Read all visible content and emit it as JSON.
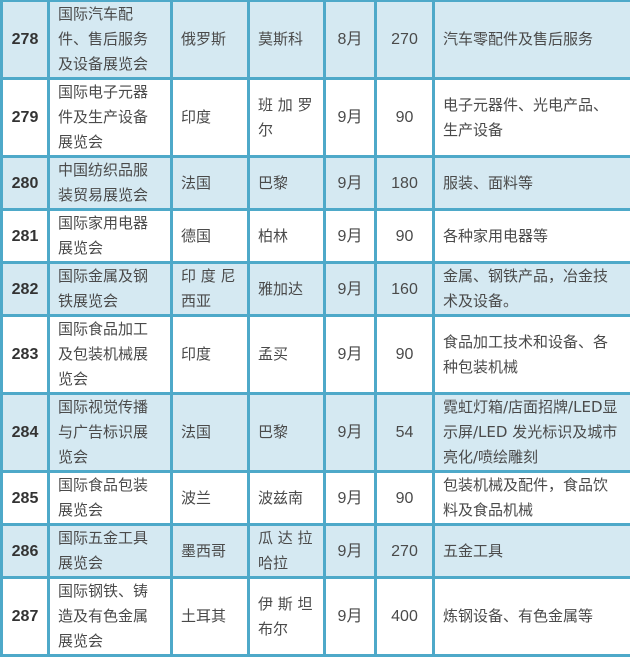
{
  "rows": [
    {
      "no": "278",
      "name": "国际汽车配件、售后服务及设备展览会",
      "country": "俄罗斯",
      "city": "莫斯科",
      "month": "8月",
      "count": "270",
      "products": "汽车零配件及售后服务"
    },
    {
      "no": "279",
      "name": "国际电子元器件及生产设备展览会",
      "country": "印度",
      "city": "班 加 罗 尔",
      "month": "9月",
      "count": "90",
      "products": "电子元器件、光电产品、生产设备"
    },
    {
      "no": "280",
      "name": "中国纺织品服装贸易展览会",
      "country": "法国",
      "city": "巴黎",
      "month": "9月",
      "count": "180",
      "products": "服装、面料等"
    },
    {
      "no": "281",
      "name": "国际家用电器展览会",
      "country": "德国",
      "city": "柏林",
      "month": "9月",
      "count": "90",
      "products": "各种家用电器等"
    },
    {
      "no": "282",
      "name": "国际金属及钢铁展览会",
      "country": "印 度 尼 西亚",
      "city": "雅加达",
      "month": "9月",
      "count": "160",
      "products": "金属、钢铁产品，冶金技术及设备。"
    },
    {
      "no": "283",
      "name": "国际食品加工及包装机械展览会",
      "country": "印度",
      "city": "孟买",
      "month": "9月",
      "count": "90",
      "products": "食品加工技术和设备、各种包装机械"
    },
    {
      "no": "284",
      "name": "国际视觉传播与广告标识展览会",
      "country": "法国",
      "city": "巴黎",
      "month": "9月",
      "count": "54",
      "products": "霓虹灯箱/店面招牌/LED显示屏/LED 发光标识及城市亮化/喷绘雕刻"
    },
    {
      "no": "285",
      "name": "国际食品包装展览会",
      "country": "波兰",
      "city": "波兹南",
      "month": "9月",
      "count": "90",
      "products": "包装机械及配件，食品饮料及食品机械"
    },
    {
      "no": "286",
      "name": "国际五金工具展览会",
      "country": "墨西哥",
      "city": "瓜 达 拉 哈拉",
      "month": "9月",
      "count": "270",
      "products": "五金工具"
    },
    {
      "no": "287",
      "name": "国际钢铁、铸造及有色金属展览会",
      "country": "土耳其",
      "city": "伊 斯 坦 布尔",
      "month": "9月",
      "count": "400",
      "products": "炼钢设备、有色金属等"
    }
  ],
  "colors": {
    "border": "#4ea9c9",
    "shade": "#d5e9f2"
  }
}
